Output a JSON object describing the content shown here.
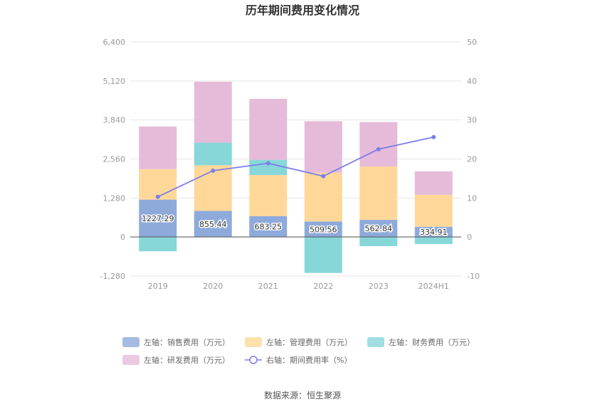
{
  "chart_data": {
    "type": "bar",
    "title": "历年期间费用变化情况",
    "categories": [
      "2019",
      "2020",
      "2021",
      "2022",
      "2023",
      "2024H1"
    ],
    "left_axis": {
      "ticks": [
        "-1,280",
        "0",
        "1,280",
        "2,560",
        "3,840",
        "5,120",
        "6,400"
      ],
      "ylim": [
        -1280,
        6400
      ]
    },
    "right_axis": {
      "ticks": [
        "-10",
        "0",
        "10",
        "20",
        "30",
        "40",
        "50"
      ],
      "ylim": [
        -10,
        50
      ]
    },
    "series": [
      {
        "name": "左轴：销售费用（万元）",
        "color": "#8eaadb",
        "values": [
          1227.29,
          855.44,
          683.25,
          509.56,
          562.84,
          334.91
        ]
      },
      {
        "name": "左轴：管理费用（万元）",
        "color": "#ffd899",
        "values": [
          1000,
          1500,
          1350,
          1600,
          1750,
          1050
        ]
      },
      {
        "name": "左轴：财务费用（万元）",
        "color": "#87d7d9",
        "values": [
          -470,
          740,
          500,
          -1180,
          -300,
          -230
        ]
      },
      {
        "name": "左轴：研发费用（万元）",
        "color": "#e6bbd9",
        "values": [
          1400,
          2000,
          2000,
          1690,
          1460,
          770
        ]
      }
    ],
    "line": {
      "name": "右轴：期间费用率（%）",
      "color": "#7b7fe8",
      "values": [
        10.3,
        17.0,
        18.9,
        15.6,
        22.5,
        25.6
      ]
    },
    "data_labels": [
      "1227.29",
      "855.44",
      "683.25",
      "509.56",
      "562.84",
      "334.91"
    ]
  },
  "source": "数据来源：恒生聚源"
}
